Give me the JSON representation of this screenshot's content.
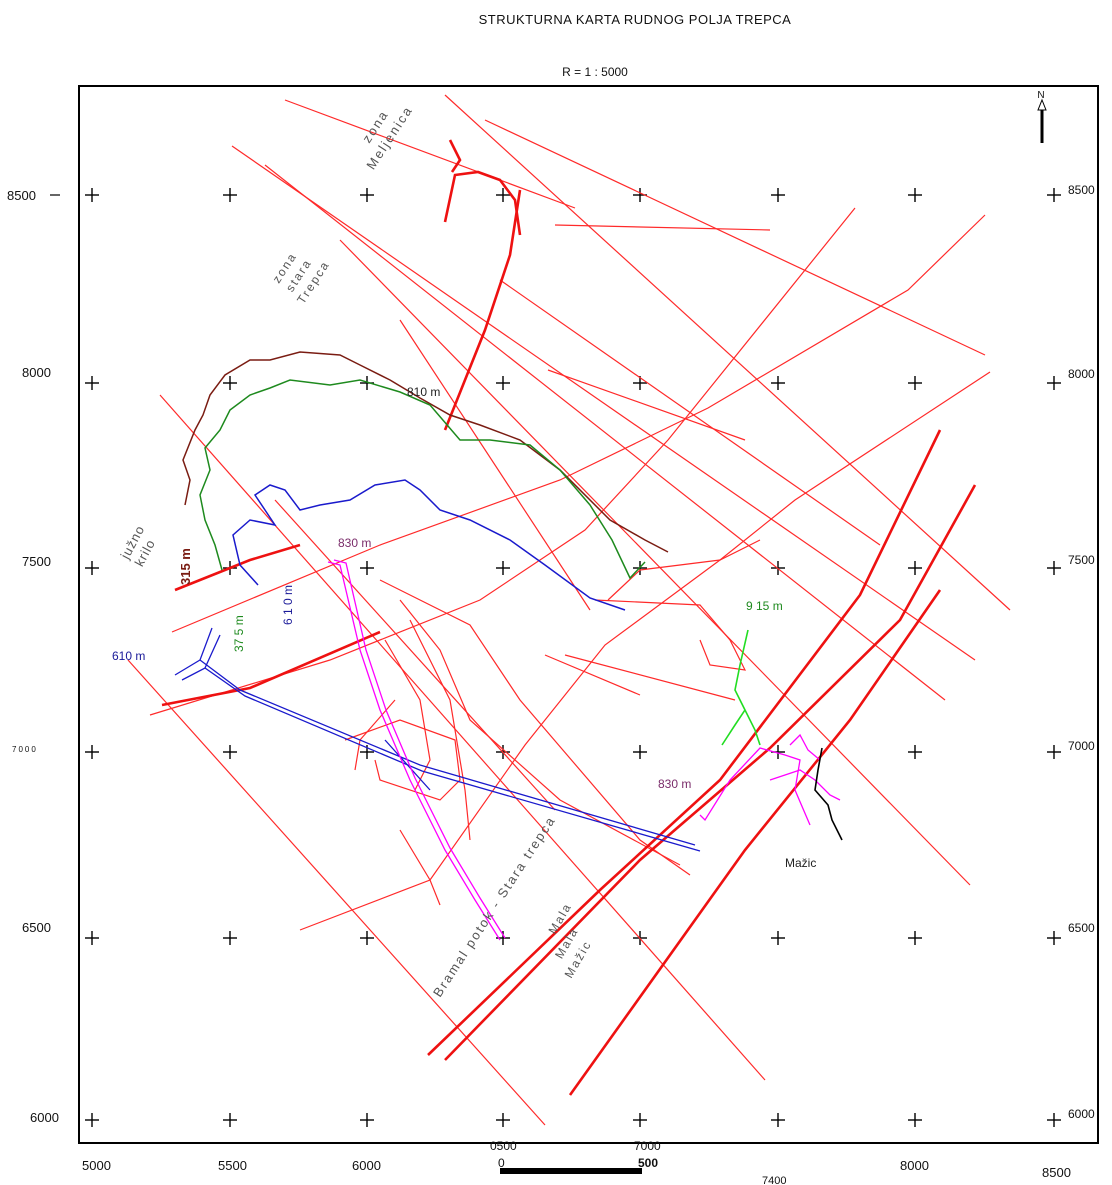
{
  "title": "STRUKTURNA  KARTA RUDNOG POLJA TREPCA",
  "scale": "R = 1 : 5000",
  "north_label": "N",
  "colors": {
    "fault": "#ff2a2a",
    "level_315": "#7a1c12",
    "level_375": "#1e8a1e",
    "level_610": "#1a1acc",
    "level_810": "#222222",
    "level_830": "#ff00ff",
    "level_915": "#22dd22",
    "mazic_adit": "#000000"
  },
  "axes": {
    "x_labels": [
      "5000",
      "5500",
      "6000",
      "8000",
      "8500"
    ],
    "y_left_labels": [
      "8500",
      "8000",
      "7500",
      "7000",
      "6500",
      "6000"
    ],
    "y_right_labels": [
      "8500",
      "8000",
      "7500",
      "7000",
      "6500",
      "6000"
    ],
    "bottom_extra": [
      "0500",
      "7000",
      "7400"
    ],
    "scalebar_start": "0",
    "scalebar_end": "500"
  },
  "labels": {
    "zona_meljenica": [
      "zona",
      "Meljenica"
    ],
    "zona_stara_trepca": [
      "zona",
      "stara",
      "Trepca"
    ],
    "juzno_krilo": [
      "južno",
      "krilo"
    ],
    "level_315": "315 m",
    "level_375": "37 5 m",
    "level_610a": "6 1 0 m",
    "level_610b": "610 m",
    "level_810": "810 m",
    "level_830a": "830 m",
    "level_830b": "830 m",
    "level_915": "9 15 m",
    "mazic": "Mažic",
    "bramal_potok": "Bramal potok - Stara trepca",
    "mala_mazic": [
      "Mala",
      "Mala",
      "Mažic"
    ]
  }
}
